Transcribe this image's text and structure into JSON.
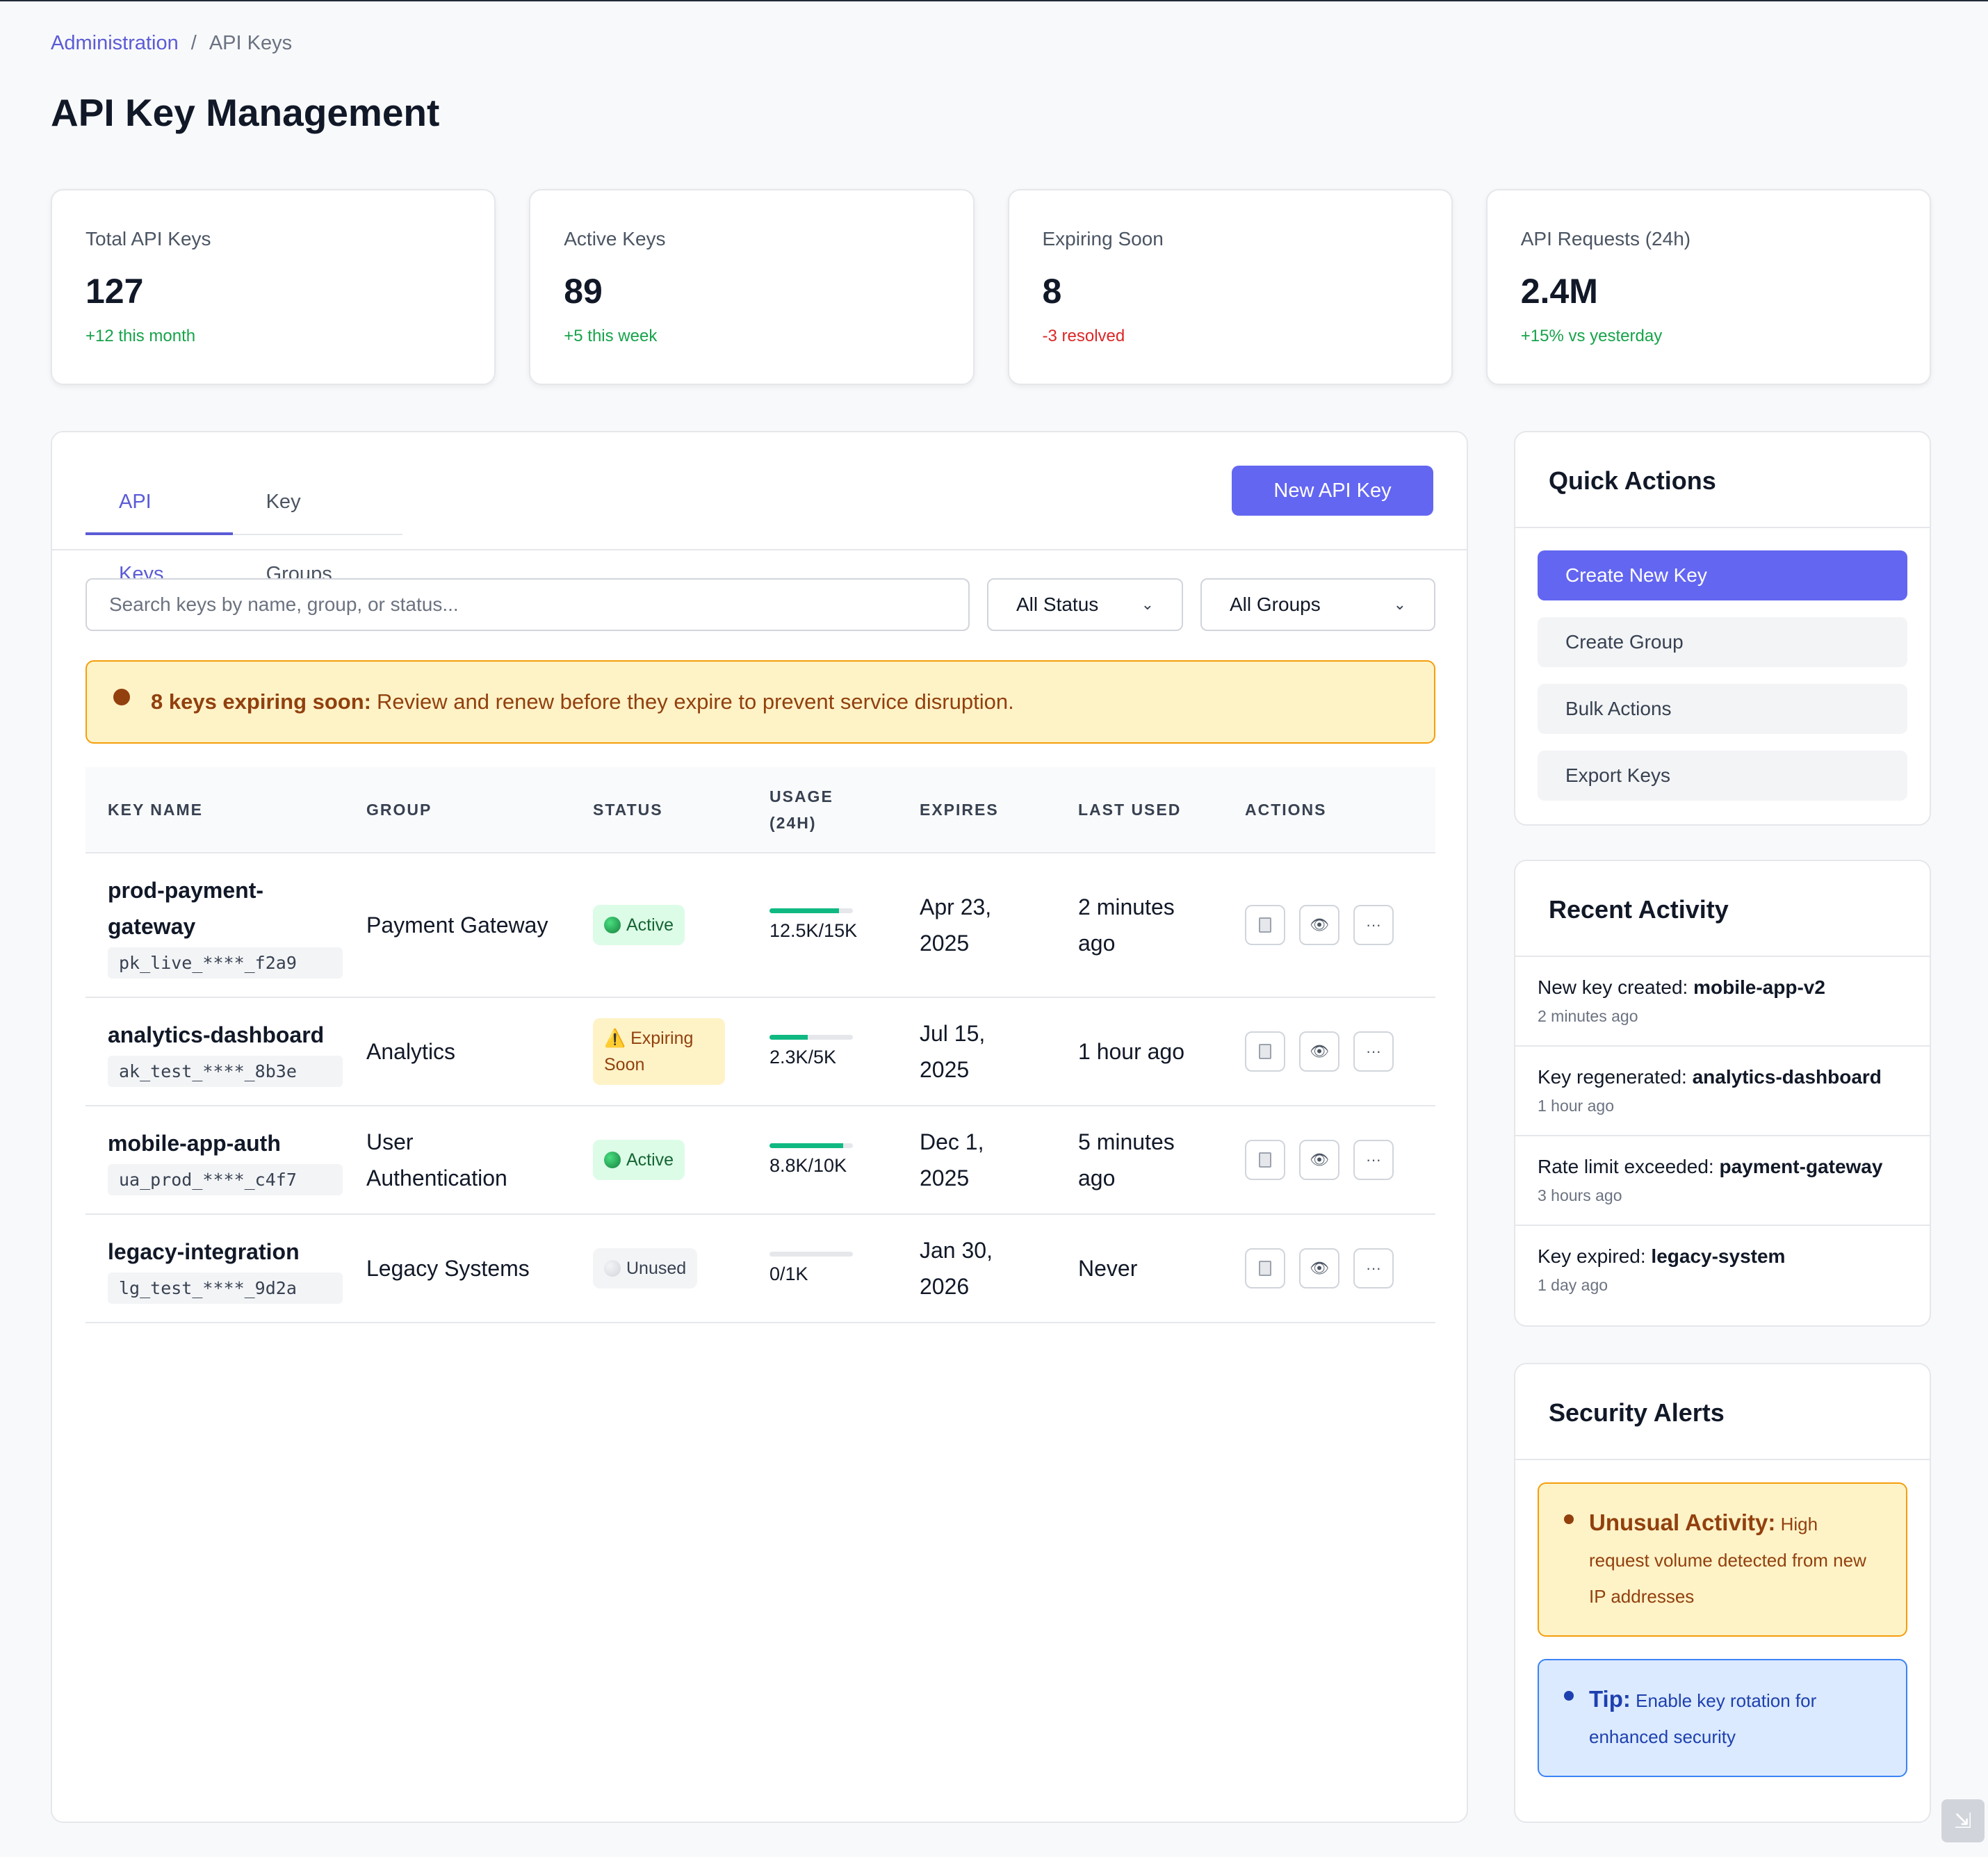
{
  "breadcrumb": {
    "parent": "Administration",
    "separator": "/",
    "current": "API Keys"
  },
  "page_title": "API Key Management",
  "stats": [
    {
      "label": "Total API Keys",
      "value": "127",
      "delta": "+12 this month",
      "trend": "positive"
    },
    {
      "label": "Active Keys",
      "value": "89",
      "delta": "+5 this week",
      "trend": "positive"
    },
    {
      "label": "Expiring Soon",
      "value": "8",
      "delta": "-3 resolved",
      "trend": "negative"
    },
    {
      "label": "API Requests (24h)",
      "value": "2.4M",
      "delta": "+15% vs yesterday",
      "trend": "positive"
    }
  ],
  "tabs": [
    {
      "label": "API Keys",
      "active": true
    },
    {
      "label": "Key Groups",
      "active": false
    }
  ],
  "new_key_button": "New API Key",
  "search": {
    "placeholder": "Search keys by name, group, or status...",
    "value": ""
  },
  "filters": {
    "status": "All Status",
    "groups": "All Groups"
  },
  "warning_banner": {
    "bold": "8 keys expiring soon:",
    "text": "Review and renew before they expire to prevent service disruption."
  },
  "table": {
    "headers": {
      "key_name": "KEY NAME",
      "group": "GROUP",
      "status": "STATUS",
      "usage_line1": "USAGE",
      "usage_line2": "(24H)",
      "expires": "EXPIRES",
      "last_used": "LAST USED",
      "actions": "ACTIONS"
    },
    "rows": [
      {
        "name_line1": "prod-payment-",
        "name_line2": "gateway",
        "code": "pk_live_****_f2a9",
        "group_line1": "Payment Gateway",
        "group_line2": "",
        "status": "Active",
        "status_type": "active",
        "usage_fraction": 0.83,
        "usage": "12.5K/15K",
        "expires_line1": "Apr 23,",
        "expires_line2": "2025",
        "last_used_line1": "2 minutes",
        "last_used_line2": "ago"
      },
      {
        "name_line1": "analytics-dashboard",
        "name_line2": "",
        "code": "ak_test_****_8b3e",
        "group_line1": "Analytics",
        "group_line2": "",
        "status": "Expiring Soon",
        "status_type": "expiring",
        "usage_fraction": 0.46,
        "usage": "2.3K/5K",
        "expires_line1": "Jul 15,",
        "expires_line2": "2025",
        "last_used_line1": "1 hour ago",
        "last_used_line2": ""
      },
      {
        "name_line1": "mobile-app-auth",
        "name_line2": "",
        "code": "ua_prod_****_c4f7",
        "group_line1": "User",
        "group_line2": "Authentication",
        "status": "Active",
        "status_type": "active",
        "usage_fraction": 0.88,
        "usage": "8.8K/10K",
        "expires_line1": "Dec 1,",
        "expires_line2": "2025",
        "last_used_line1": "5 minutes",
        "last_used_line2": "ago"
      },
      {
        "name_line1": "legacy-integration",
        "name_line2": "",
        "code": "lg_test_****_9d2a",
        "group_line1": "Legacy Systems",
        "group_line2": "",
        "status": "Unused",
        "status_type": "unused",
        "usage_fraction": 0,
        "usage": "0/1K",
        "expires_line1": "Jan 30,",
        "expires_line2": "2026",
        "last_used_line1": "Never",
        "last_used_line2": ""
      }
    ],
    "action_icons": [
      "clipboard-icon",
      "eye-icon",
      "more-icon"
    ],
    "more_glyph": "···"
  },
  "quick_actions": {
    "title": "Quick Actions",
    "items": [
      "Create New Key",
      "Create Group",
      "Bulk Actions",
      "Export Keys"
    ]
  },
  "recent_activity": {
    "title": "Recent Activity",
    "items": [
      {
        "text": "New key created:",
        "target": "mobile-app-v2",
        "time": "2 minutes ago"
      },
      {
        "text": "Key regenerated:",
        "target": "analytics-dashboard",
        "time": "1 hour ago"
      },
      {
        "text": "Rate limit exceeded:",
        "target": "payment-gateway",
        "time": "3 hours ago"
      },
      {
        "text": "Key expired:",
        "target": "legacy-system",
        "time": "1 day ago"
      }
    ]
  },
  "security_alerts": {
    "title": "Security Alerts",
    "alerts": [
      {
        "type": "warning",
        "bold": "Unusual Activity:",
        "text": "High request volume detected from new IP addresses"
      },
      {
        "type": "info",
        "bold": "Tip:",
        "text": "Enable key rotation for enhanced security"
      }
    ]
  },
  "colors": {
    "accent": "#6366f1",
    "positive": "#16a34a",
    "negative": "#dc2626",
    "warning_bg": "#fef3c7",
    "info_bg": "#dbeafe"
  }
}
